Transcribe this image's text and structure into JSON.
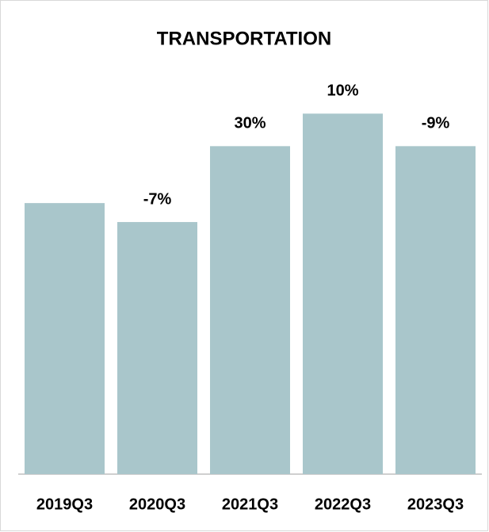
{
  "chart_data": {
    "type": "bar",
    "title": "TRANSPORTATION",
    "categories": [
      "2019Q3",
      "2020Q3",
      "2021Q3",
      "2022Q3",
      "2023Q3"
    ],
    "values": [
      100,
      93,
      121,
      133,
      121
    ],
    "annotations": [
      null,
      "-7%",
      "30%",
      "10%",
      "-9%"
    ],
    "color": "#a9c6cb",
    "ylim": [
      0,
      160
    ]
  }
}
